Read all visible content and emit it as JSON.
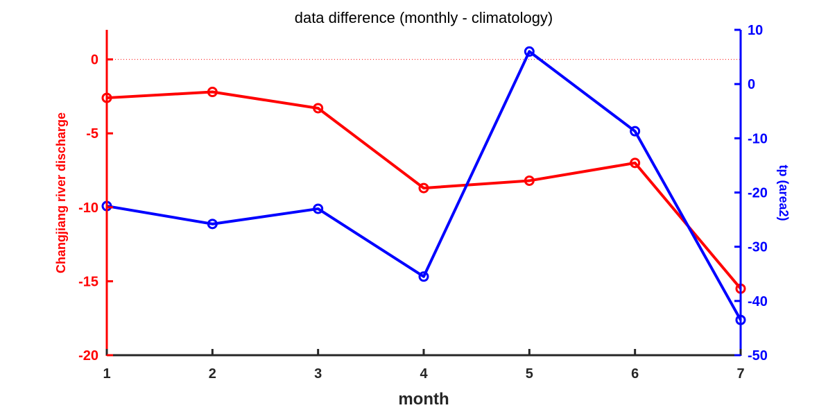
{
  "chart_data": {
    "type": "line",
    "title": "data difference (monthly - climatology)",
    "xlabel": "month",
    "x": [
      1,
      2,
      3,
      4,
      5,
      6,
      7
    ],
    "xlim": [
      1,
      7
    ],
    "x_ticks": [
      "1",
      "2",
      "3",
      "4",
      "5",
      "6",
      "7"
    ],
    "grid": false,
    "zero_reference_line": true,
    "left_axis": {
      "label": "Changjiang river discharge",
      "color": "#ff0000",
      "ylim": [
        -20,
        2
      ],
      "ticks": [
        0,
        -5,
        -10,
        -15,
        -20
      ],
      "tick_labels": [
        "0",
        "-5",
        "-10",
        "-15",
        "-20"
      ]
    },
    "right_axis": {
      "label": "tp (area2)",
      "color": "#0000ff",
      "ylim": [
        -50,
        10
      ],
      "ticks": [
        10,
        0,
        -10,
        -20,
        -30,
        -40,
        -50
      ],
      "tick_labels": [
        "10",
        "0",
        "-10",
        "-20",
        "-30",
        "-40",
        "-50"
      ]
    },
    "series": [
      {
        "axis": "left",
        "color": "#ff0000",
        "marker": "circle",
        "values": [
          -2.6,
          -2.2,
          -3.3,
          -8.7,
          -8.2,
          -7.0,
          -15.5
        ]
      },
      {
        "axis": "right",
        "color": "#0000ff",
        "marker": "circle",
        "values": [
          -22.5,
          -25.8,
          -23.0,
          -35.5,
          6.0,
          -8.7,
          -43.5
        ]
      }
    ]
  }
}
